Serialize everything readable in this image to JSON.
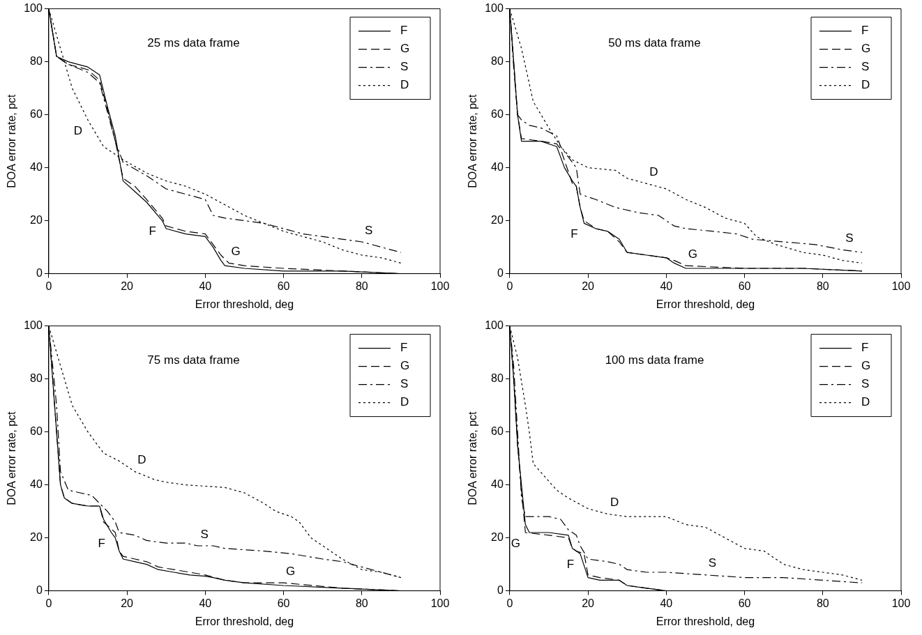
{
  "chart_data": [
    {
      "type": "line",
      "title": "25 ms data frame",
      "xlabel": "Error threshold, deg",
      "ylabel": "DOA error rate, pct",
      "xlim": [
        0,
        100
      ],
      "ylim": [
        0,
        100
      ],
      "xticks": [
        0,
        20,
        40,
        60,
        80,
        100
      ],
      "yticks": [
        0,
        20,
        40,
        60,
        80,
        100
      ],
      "grid": false,
      "legend": "top right",
      "marker": "none",
      "series": [
        {
          "name": "F",
          "color": "#000000",
          "line_style": "solid",
          "x": [
            0,
            2,
            5,
            10,
            13,
            15,
            17,
            19,
            22,
            25,
            29,
            30,
            35,
            40,
            42,
            44,
            45,
            50,
            60,
            75,
            90
          ],
          "values": [
            100,
            82,
            80,
            78,
            75,
            63,
            52,
            35,
            31,
            27,
            20,
            17,
            15,
            14,
            10,
            5,
            3,
            2,
            1,
            1,
            0
          ]
        },
        {
          "name": "G",
          "color": "#000000",
          "line_style": "dashed",
          "x": [
            0,
            2,
            5,
            10,
            13,
            15,
            17,
            19,
            22,
            25,
            29,
            30,
            35,
            40,
            42,
            44,
            46,
            50,
            60,
            75,
            90
          ],
          "values": [
            100,
            82,
            79,
            77,
            73,
            62,
            50,
            36,
            33,
            28,
            21,
            18,
            16,
            15,
            11,
            7,
            4,
            3,
            2,
            1,
            0
          ]
        },
        {
          "name": "S",
          "color": "#000000",
          "line_style": "dashdot",
          "x": [
            0,
            2,
            5,
            10,
            13,
            17,
            19,
            25,
            30,
            35,
            40,
            42,
            45,
            50,
            55,
            60,
            65,
            70,
            80,
            85,
            90
          ],
          "values": [
            100,
            82,
            79,
            76,
            72,
            50,
            42,
            37,
            32,
            30,
            28,
            22,
            21,
            20,
            19,
            17,
            15,
            14,
            12,
            10,
            8
          ]
        },
        {
          "name": "D",
          "color": "#000000",
          "line_style": "dotted",
          "x": [
            0,
            3,
            6,
            10,
            14,
            19,
            25,
            30,
            35,
            40,
            45,
            50,
            55,
            60,
            65,
            70,
            75,
            80,
            85,
            90
          ],
          "values": [
            100,
            85,
            70,
            58,
            48,
            43,
            38,
            35,
            33,
            30,
            26,
            22,
            19,
            16,
            14,
            12,
            9,
            7,
            6,
            4
          ]
        }
      ],
      "annotations": [
        {
          "text": "D",
          "x": 10,
          "y": 58
        },
        {
          "text": "F",
          "x": 29,
          "y": 20
        },
        {
          "text": "G",
          "x": 46,
          "y": 4
        },
        {
          "text": "S",
          "x": 80,
          "y": 12
        }
      ]
    },
    {
      "type": "line",
      "title": "50 ms data frame",
      "xlabel": "Error threshold, deg",
      "ylabel": "DOA error rate, pct",
      "xlim": [
        0,
        100
      ],
      "ylim": [
        0,
        100
      ],
      "xticks": [
        0,
        20,
        40,
        60,
        80,
        100
      ],
      "yticks": [
        0,
        20,
        40,
        60,
        80,
        100
      ],
      "grid": false,
      "legend": "top right",
      "marker": "none",
      "series": [
        {
          "name": "F",
          "color": "#000000",
          "line_style": "solid",
          "x": [
            0,
            1,
            2,
            3,
            8,
            12,
            14,
            16,
            17,
            18,
            19,
            22,
            25,
            28,
            30,
            35,
            40,
            42,
            45,
            60,
            75,
            90
          ],
          "values": [
            100,
            80,
            60,
            50,
            50,
            48,
            40,
            35,
            33,
            25,
            19,
            17,
            16,
            13,
            8,
            7,
            6,
            4,
            2,
            2,
            2,
            1
          ]
        },
        {
          "name": "G",
          "color": "#000000",
          "line_style": "dashed",
          "x": [
            0,
            1,
            2,
            3,
            8,
            12,
            13,
            16,
            17,
            18,
            19,
            22,
            25,
            28,
            30,
            35,
            40,
            42,
            45,
            60,
            75,
            90
          ],
          "values": [
            100,
            80,
            60,
            51,
            50,
            49,
            47,
            34,
            33,
            25,
            20,
            17,
            16,
            12,
            8,
            7,
            6,
            5,
            3,
            2,
            2,
            1
          ]
        },
        {
          "name": "S",
          "color": "#000000",
          "line_style": "dashdot",
          "x": [
            0,
            1,
            2,
            3,
            5,
            8,
            12,
            13,
            17,
            18,
            22,
            27,
            33,
            38,
            42,
            45,
            52,
            58,
            62,
            70,
            78,
            85,
            90
          ],
          "values": [
            100,
            78,
            60,
            58,
            56,
            55,
            52,
            48,
            40,
            30,
            28,
            25,
            23,
            22,
            18,
            17,
            16,
            15,
            13,
            12,
            11,
            9,
            8
          ]
        },
        {
          "name": "D",
          "color": "#000000",
          "line_style": "dotted",
          "x": [
            0,
            3,
            6,
            10,
            13,
            16,
            20,
            27,
            30,
            35,
            40,
            45,
            50,
            55,
            60,
            63,
            68,
            75,
            80,
            85,
            90
          ],
          "values": [
            100,
            85,
            65,
            55,
            48,
            43,
            40,
            39,
            36,
            34,
            32,
            28,
            25,
            21,
            19,
            14,
            11,
            8,
            7,
            5,
            4
          ]
        }
      ],
      "annotations": [
        {
          "text": "D",
          "x": 35,
          "y": 34
        },
        {
          "text": "F",
          "x": 19,
          "y": 19
        },
        {
          "text": "G",
          "x": 45,
          "y": 3
        },
        {
          "text": "S",
          "x": 85,
          "y": 9
        }
      ]
    },
    {
      "type": "line",
      "title": "75 ms data frame",
      "xlabel": "Error threshold, deg",
      "ylabel": "DOA error rate, pct",
      "xlim": [
        0,
        100
      ],
      "ylim": [
        0,
        100
      ],
      "xticks": [
        0,
        20,
        40,
        60,
        80,
        100
      ],
      "yticks": [
        0,
        20,
        40,
        60,
        80,
        100
      ],
      "grid": false,
      "legend": "top right",
      "marker": "none",
      "series": [
        {
          "name": "F",
          "color": "#000000",
          "line_style": "solid",
          "x": [
            0,
            1,
            2,
            3,
            4,
            6,
            10,
            13,
            14,
            16,
            17,
            18,
            19,
            22,
            25,
            28,
            32,
            36,
            40,
            42,
            45,
            50,
            60,
            75,
            90
          ],
          "values": [
            100,
            80,
            60,
            40,
            35,
            33,
            32,
            32,
            27,
            22,
            20,
            15,
            12,
            11,
            10,
            8,
            7,
            6,
            5.5,
            5,
            4,
            3,
            2,
            1,
            0
          ]
        },
        {
          "name": "G",
          "color": "#000000",
          "line_style": "dashed",
          "x": [
            0,
            1,
            2,
            3,
            4,
            6,
            10,
            13,
            14,
            17,
            18,
            19,
            22,
            25,
            28,
            32,
            36,
            40,
            45,
            50,
            60,
            75,
            90
          ],
          "values": [
            100,
            80,
            60,
            40,
            35,
            33,
            32,
            32,
            26,
            22,
            15,
            13,
            12,
            11,
            9,
            8,
            7,
            6,
            4,
            3,
            3,
            1,
            0
          ]
        },
        {
          "name": "S",
          "color": "#000000",
          "line_style": "dashdot",
          "x": [
            0,
            2,
            3,
            5,
            8,
            11,
            13,
            15,
            17,
            18,
            22,
            25,
            30,
            35,
            38,
            42,
            45,
            55,
            62,
            70,
            75,
            80,
            85,
            90
          ],
          "values": [
            100,
            70,
            45,
            38,
            37,
            36,
            33,
            30,
            26,
            22,
            21,
            19,
            18,
            18,
            17,
            17,
            16,
            15,
            14,
            12,
            11,
            9,
            7,
            5
          ]
        },
        {
          "name": "D",
          "color": "#000000",
          "line_style": "dotted",
          "x": [
            0,
            2,
            4,
            6,
            10,
            14,
            18,
            22,
            27,
            30,
            35,
            45,
            50,
            55,
            58,
            62,
            64,
            67,
            70,
            72,
            75,
            80,
            85,
            90
          ],
          "values": [
            100,
            90,
            80,
            70,
            60,
            52,
            49,
            45,
            42,
            41,
            40,
            39,
            37,
            33,
            30,
            28,
            26,
            20,
            17,
            15,
            12,
            8,
            7,
            5
          ]
        }
      ],
      "annotations": [
        {
          "text": "D",
          "x": 22,
          "y": 45
        },
        {
          "text": "S",
          "x": 38,
          "y": 17
        },
        {
          "text": "F",
          "x": 16,
          "y": 22
        },
        {
          "text": "G",
          "x": 60,
          "y": 3
        }
      ]
    },
    {
      "type": "line",
      "title": "100 ms data frame",
      "xlabel": "Error threshold, deg",
      "ylabel": "DOA error rate, pct",
      "xlim": [
        0,
        100
      ],
      "ylim": [
        0,
        100
      ],
      "xticks": [
        0,
        20,
        40,
        60,
        80,
        100
      ],
      "yticks": [
        0,
        20,
        40,
        60,
        80,
        100
      ],
      "grid": false,
      "legend": "top right",
      "marker": "none",
      "series": [
        {
          "name": "F",
          "color": "#000000",
          "line_style": "solid",
          "x": [
            0,
            1,
            2,
            3,
            4,
            5,
            10,
            15,
            16,
            17,
            18,
            20,
            23,
            28,
            30,
            35,
            40
          ],
          "values": [
            100,
            80,
            55,
            40,
            25,
            22,
            22,
            21,
            16,
            15,
            14,
            5,
            4,
            4,
            2,
            1,
            0
          ]
        },
        {
          "name": "G",
          "color": "#000000",
          "line_style": "dashed",
          "x": [
            0,
            1,
            2,
            3,
            4,
            10,
            15,
            16,
            17,
            19,
            20,
            23,
            28,
            30,
            35,
            40
          ],
          "values": [
            100,
            80,
            55,
            38,
            22,
            21,
            20,
            16,
            15,
            14,
            6,
            5,
            4,
            2,
            1,
            0
          ]
        },
        {
          "name": "S",
          "color": "#000000",
          "line_style": "dashdot",
          "x": [
            0,
            1,
            2,
            3,
            4,
            10,
            13,
            15,
            17,
            18,
            20,
            25,
            28,
            30,
            35,
            40,
            50,
            60,
            70,
            80,
            90
          ],
          "values": [
            100,
            85,
            60,
            35,
            28,
            28,
            27,
            23,
            21,
            17,
            12,
            11,
            10,
            8,
            7,
            7,
            6,
            5,
            5,
            4,
            3
          ]
        },
        {
          "name": "D",
          "color": "#000000",
          "line_style": "dotted",
          "x": [
            0,
            2,
            4,
            5,
            6,
            9,
            12,
            15,
            20,
            25,
            30,
            35,
            40,
            45,
            50,
            55,
            60,
            65,
            70,
            75,
            80,
            85,
            90
          ],
          "values": [
            100,
            88,
            70,
            60,
            48,
            43,
            38,
            35,
            31,
            29,
            28,
            28,
            28,
            25,
            24,
            20,
            16,
            15,
            10,
            8,
            7,
            6,
            4
          ]
        }
      ],
      "annotations": [
        {
          "text": "D",
          "x": 25,
          "y": 29
        },
        {
          "text": "S",
          "x": 50,
          "y": 6
        },
        {
          "text": "F",
          "x": 18,
          "y": 14
        },
        {
          "text": "G",
          "x": 4,
          "y": 22
        }
      ]
    }
  ]
}
